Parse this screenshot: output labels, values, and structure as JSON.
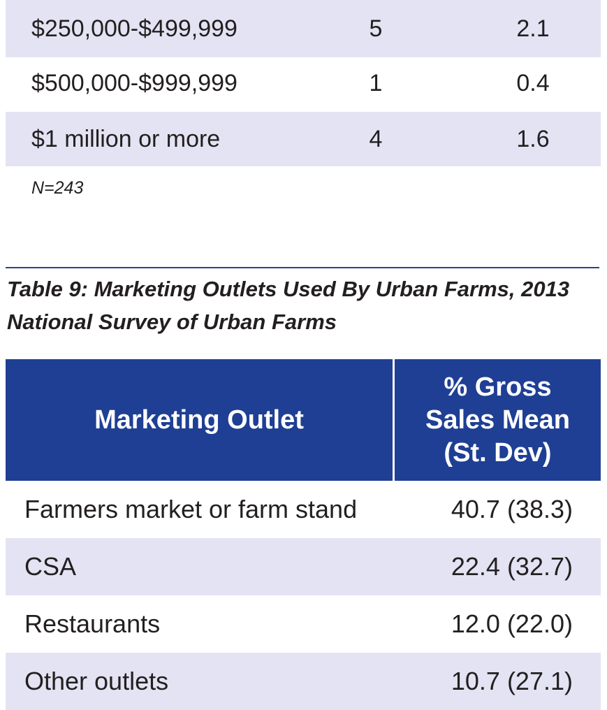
{
  "top_table": {
    "rows": [
      [
        "$250,000-$499,999",
        "5",
        "2.1"
      ],
      [
        "$500,000-$999,999",
        "1",
        "0.4"
      ],
      [
        "$1 million or more",
        "4",
        "1.6"
      ]
    ],
    "note": "N=243"
  },
  "table9": {
    "caption": [
      "Table 9: Marketing Outlets Used By Urban Farms, 2013",
      "National Survey of Urban Farms"
    ],
    "headers": [
      [
        "Marketing Outlet"
      ],
      [
        "% Gross",
        "Sales Mean",
        "(St. Dev)"
      ]
    ],
    "rows": [
      [
        "Farmers market or farm stand",
        "40.7 (38.3)"
      ],
      [
        "CSA",
        "22.4 (32.7)"
      ],
      [
        "Restaurants",
        "12.0 (22.0)"
      ],
      [
        "Other outlets",
        "10.7 (27.1)"
      ]
    ]
  }
}
